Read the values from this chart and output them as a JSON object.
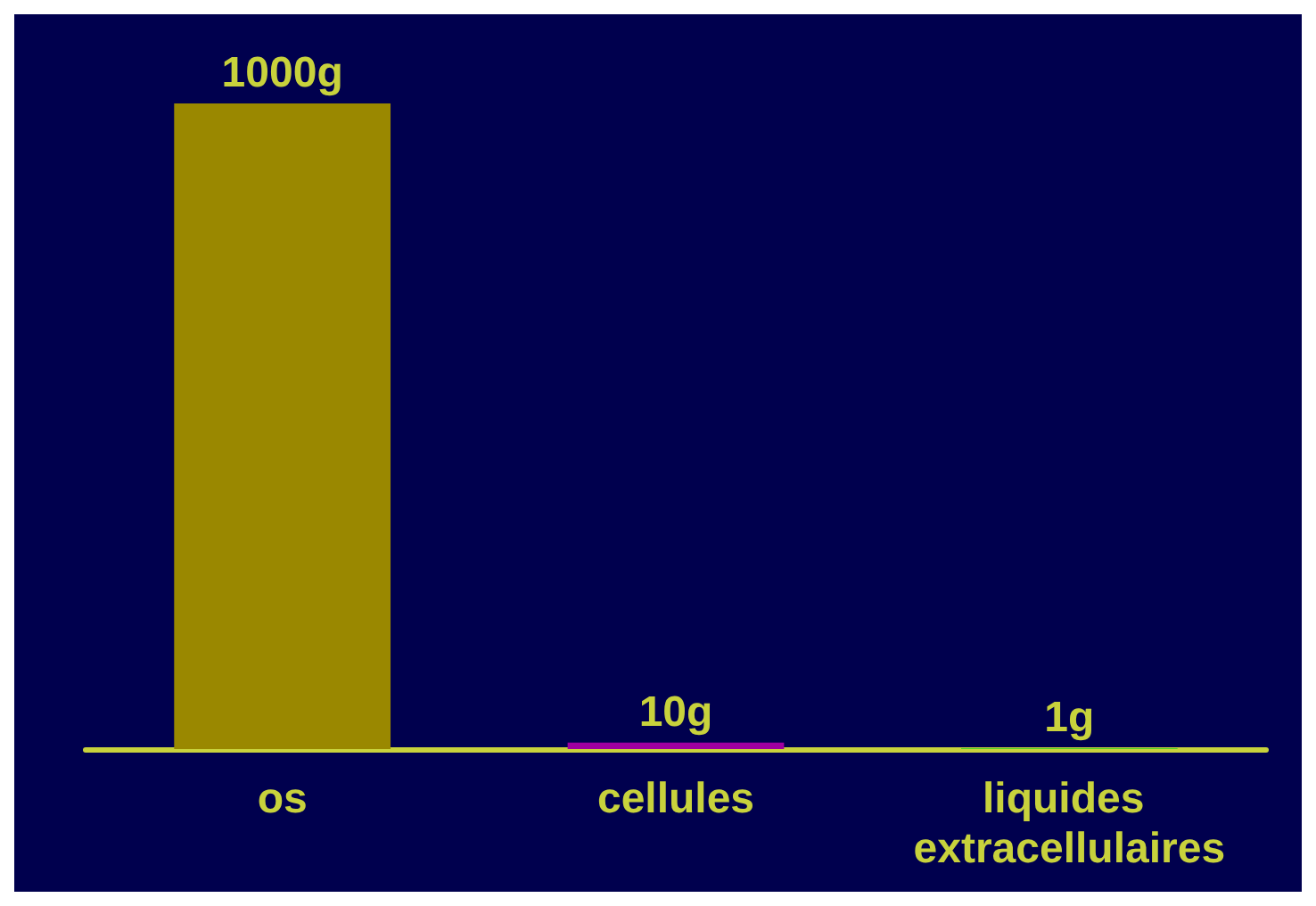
{
  "chart_data": {
    "type": "bar",
    "categories": [
      "os",
      "cellules",
      "liquides extracellulaires"
    ],
    "values": [
      1000,
      10,
      1
    ],
    "colors": [
      "#9a8800",
      "#a000a0",
      "#22d022"
    ],
    "value_labels": [
      "1000g",
      "10g",
      "1g"
    ]
  }
}
